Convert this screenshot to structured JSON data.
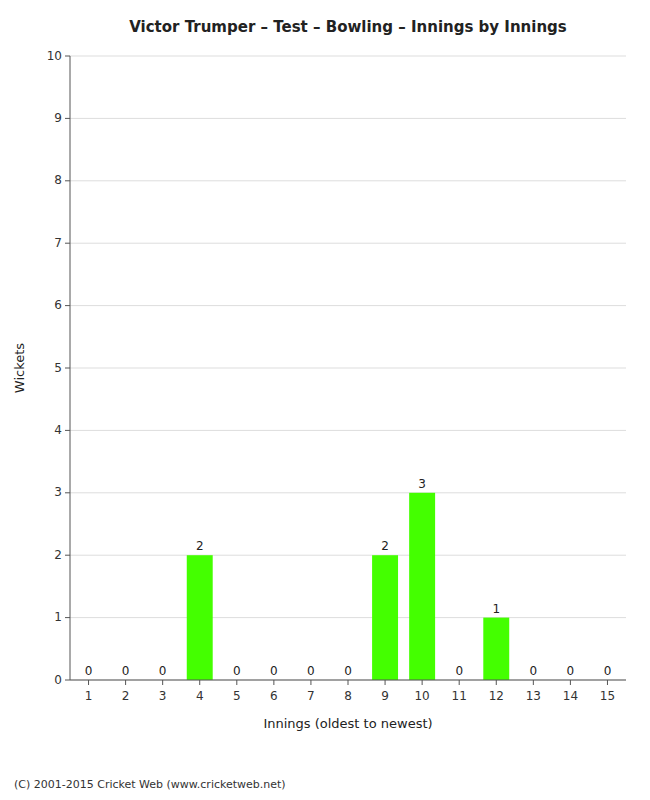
{
  "chart_data": {
    "type": "bar",
    "title": "Victor Trumper – Test – Bowling – Innings by Innings",
    "x_label": "Innings (oldest to newest)",
    "y_label": "Wickets",
    "footnote": "(C) 2001-2015 Cricket Web (www.cricketweb.net)",
    "categories": [
      "1",
      "2",
      "3",
      "4",
      "5",
      "6",
      "7",
      "8",
      "9",
      "10",
      "11",
      "12",
      "13",
      "14",
      "15"
    ],
    "values": [
      0,
      0,
      0,
      2,
      0,
      0,
      0,
      0,
      2,
      3,
      0,
      1,
      0,
      0,
      0
    ],
    "color": "#44ff00",
    "ylim": [
      0,
      10
    ],
    "yticks": [
      0,
      1,
      2,
      3,
      4,
      5,
      6,
      7,
      8,
      9,
      10
    ],
    "grid": true,
    "data_labels": true
  }
}
